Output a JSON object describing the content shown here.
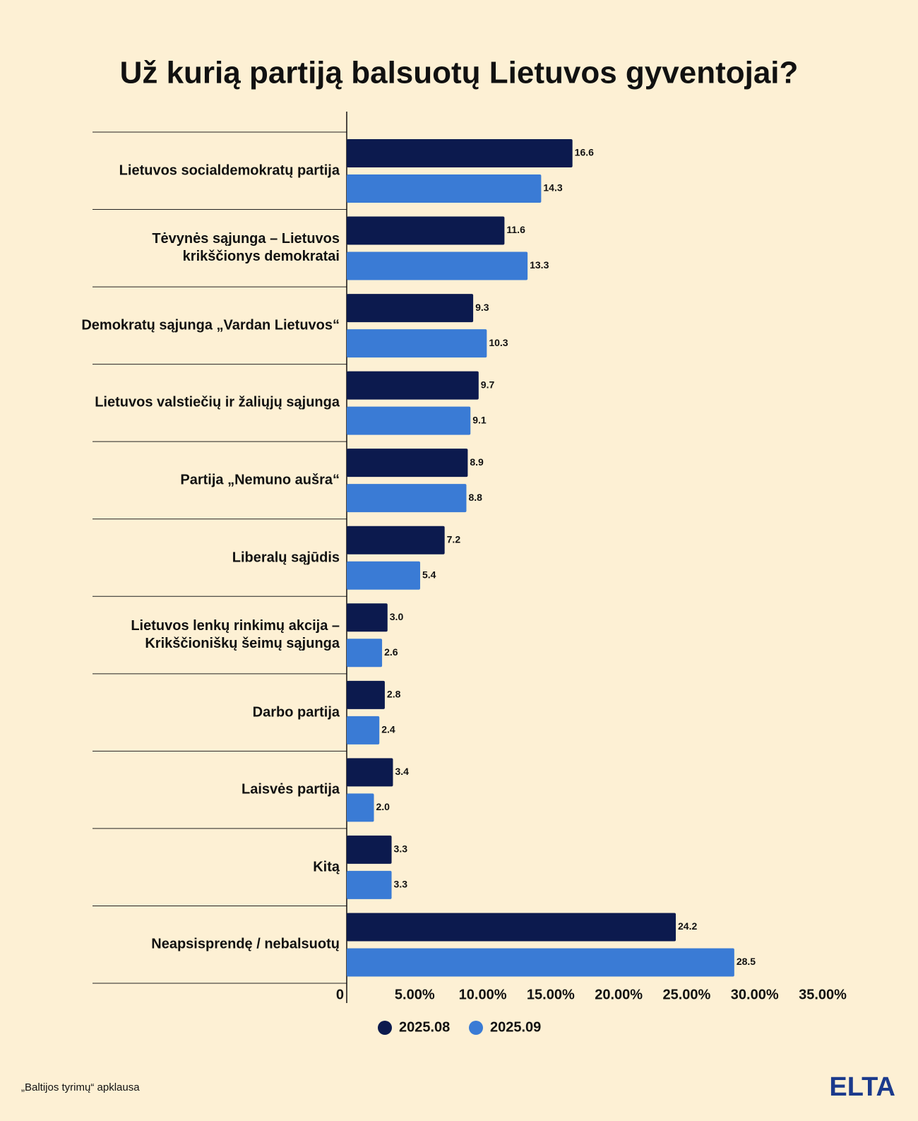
{
  "chart_data": {
    "type": "bar",
    "orientation": "horizontal",
    "title": "Už kurią partiją balsuotų Lietuvos gyventojai?",
    "categories": [
      "Lietuvos socialdemokratų partija",
      "Tėvynės sąjunga – Lietuvos krikščionys demokratai",
      "Demokratų sąjunga „Vardan Lietuvos“",
      "Lietuvos valstiečių ir žaliųjų sąjunga",
      "Partija „Nemuno aušra“",
      "Liberalų sąjūdis",
      "Lietuvos lenkų rinkimų akcija – Krikščioniškų šeimų sąjunga",
      "Darbo partija",
      "Laisvės partija",
      "Kitą",
      "Neapsisprendę / nebalsuotų"
    ],
    "series": [
      {
        "name": "2025.08",
        "color": "#0c1a4e",
        "values": [
          16.6,
          11.6,
          9.3,
          9.7,
          8.9,
          7.2,
          3.0,
          2.8,
          3.4,
          3.3,
          24.2
        ],
        "value_labels": [
          "16.6",
          "11.6",
          "9.3",
          "9.7",
          "8.9",
          "7.2",
          "3.0",
          "2.8",
          "3.4",
          "3.3",
          "24.2"
        ]
      },
      {
        "name": "2025.09",
        "color": "#3a7bd5",
        "values": [
          14.3,
          13.3,
          10.3,
          9.1,
          8.8,
          5.4,
          2.6,
          2.4,
          2.0,
          3.3,
          28.5
        ],
        "value_labels": [
          "14.3",
          "13.3",
          "10.3",
          "9.1",
          "8.8",
          "5.4",
          "2.6",
          "2.4",
          "2.0",
          "3.3",
          "28.5"
        ]
      }
    ],
    "xlim": [
      0,
      35
    ],
    "xticks": [
      0,
      {
        "value": 5,
        "label": "5.00%"
      },
      {
        "value": 10,
        "label": "10.00%"
      },
      {
        "value": 15,
        "label": "15.00%"
      },
      {
        "value": 20,
        "label": "20.00%"
      },
      {
        "value": 25,
        "label": "25.00%"
      },
      {
        "value": 30,
        "label": "30.00%"
      },
      {
        "value": 35,
        "label": "35.00%"
      }
    ],
    "legend": "bottom",
    "source": "„Baltijos tyrimų“ apklausa",
    "logo": "ELTA"
  }
}
